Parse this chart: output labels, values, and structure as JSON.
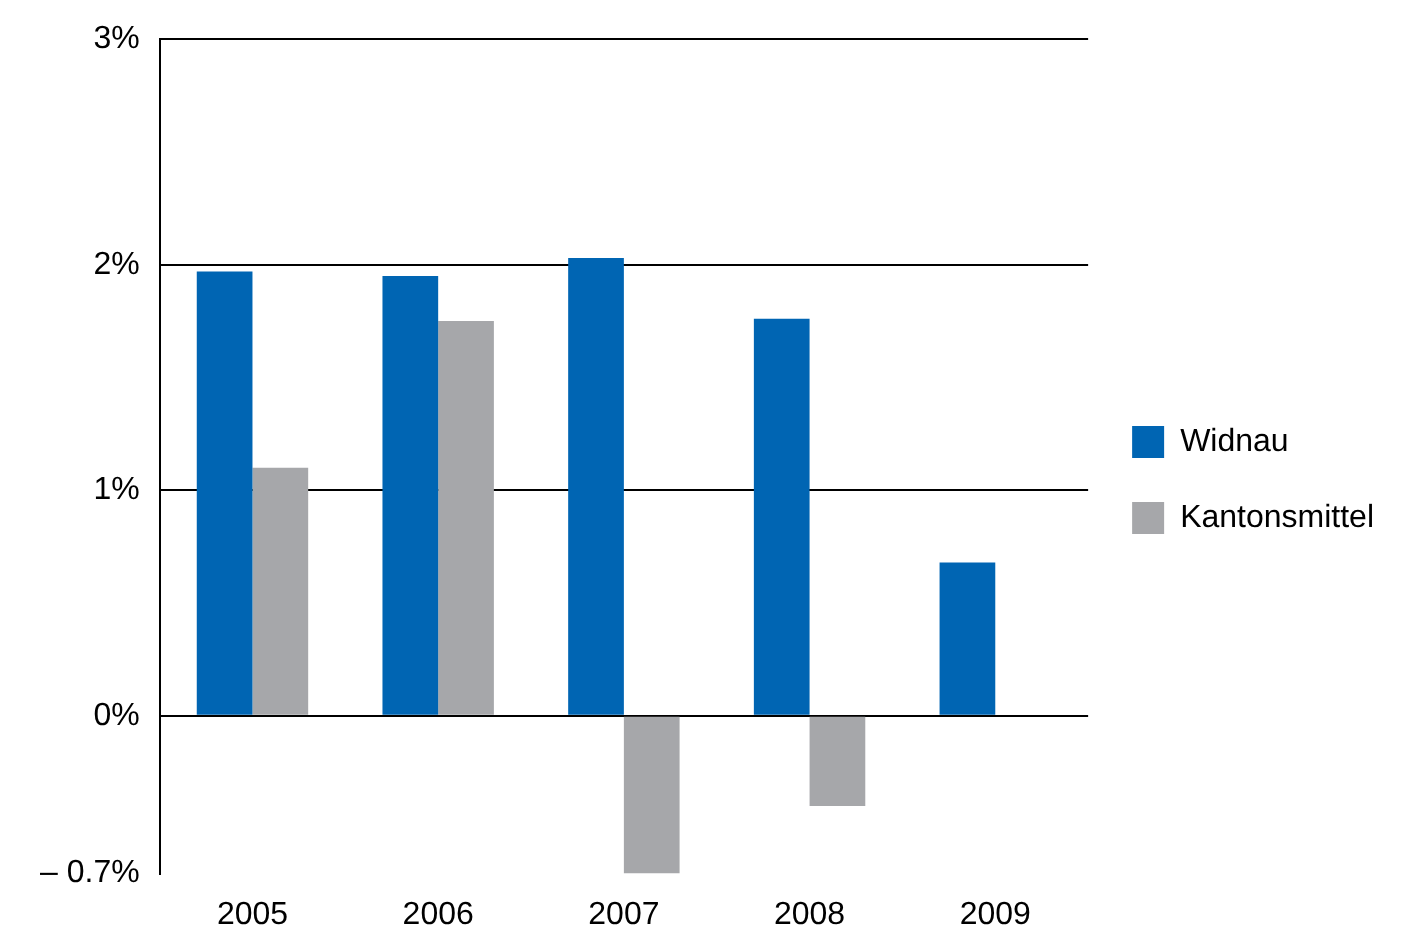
{
  "chart_data": {
    "type": "bar",
    "categories": [
      "2005",
      "2006",
      "2007",
      "2008",
      "2009"
    ],
    "series": [
      {
        "name": "Widnau",
        "color": "#0065b3",
        "values": [
          1.97,
          1.95,
          2.03,
          1.76,
          0.68
        ]
      },
      {
        "name": "Kantonsmittel",
        "color": "#a6a7aa",
        "values": [
          1.1,
          1.75,
          -0.7,
          -0.4,
          null
        ]
      }
    ],
    "ylim": [
      -0.7,
      3
    ],
    "yticks": [
      {
        "value": -0.7,
        "label": "– 0.7%"
      },
      {
        "value": 0,
        "label": "0%"
      },
      {
        "value": 1,
        "label": "1%"
      },
      {
        "value": 2,
        "label": "2%"
      },
      {
        "value": 3,
        "label": "3%"
      }
    ],
    "grid": "y",
    "legend": "right"
  }
}
